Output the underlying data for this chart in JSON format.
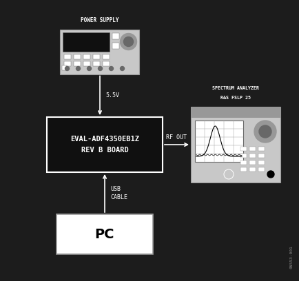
{
  "bg_color": "#1c1c1c",
  "power_supply_label": "POWER SUPPLY",
  "power_supply_voltage": "5.5V",
  "eval_board_label": "EVAL-ADF4350EB1Z\nREV B BOARD",
  "rf_out_label": "RF OUT",
  "spectrum_line1": "SPECTRUM ANALYZER",
  "spectrum_line2": "R&S FSLP 25",
  "usb_label": "USB\nCABLE",
  "pc_label": "PC",
  "watermark": "06553-001",
  "light_gray": "#c8c8c8",
  "mid_gray": "#989898",
  "dark_gray": "#686868",
  "white": "#ffffff",
  "near_black": "#101010"
}
